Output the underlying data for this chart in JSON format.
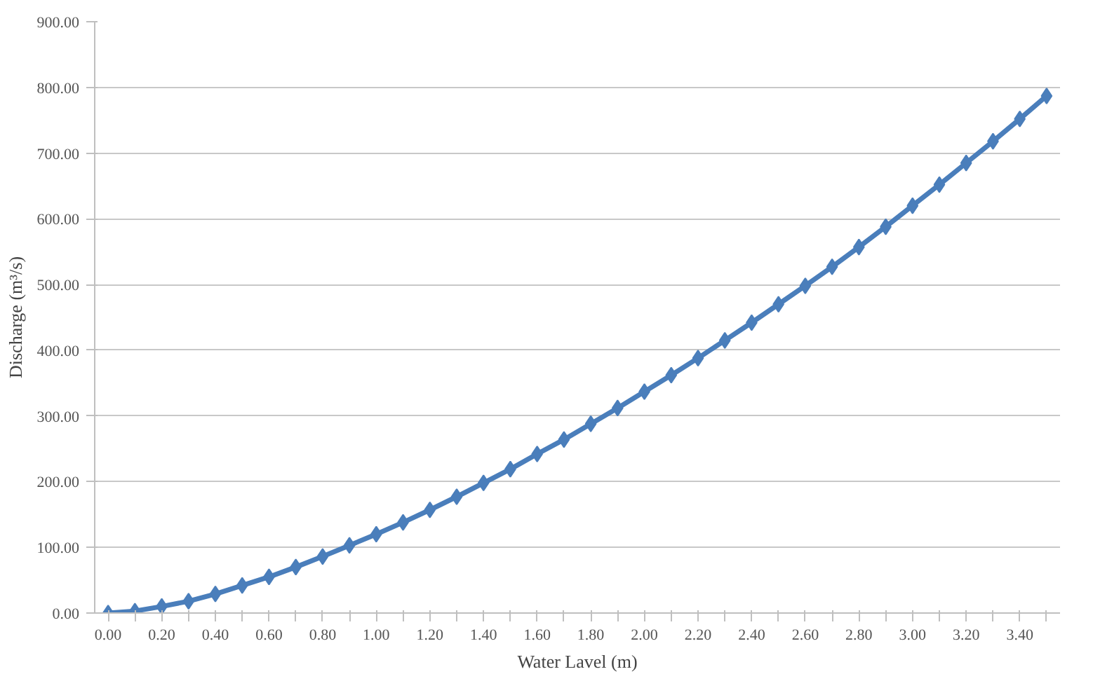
{
  "chart_data": {
    "type": "line",
    "xlabel": "Water Lavel (m)",
    "ylabel": "Discharge (m³/s)",
    "categories": [
      "0.00",
      null,
      "0.20",
      null,
      "0.40",
      null,
      "0.60",
      null,
      "0.80",
      null,
      "1.00",
      null,
      "1.20",
      null,
      "1.40",
      null,
      "1.60",
      null,
      "1.80",
      null,
      "2.00",
      null,
      "2.20",
      null,
      "2.40",
      null,
      "2.60",
      null,
      "2.80",
      null,
      "3.00",
      null,
      "3.20",
      null,
      "3.40",
      null
    ],
    "series": [
      {
        "color": "#4a7ebb",
        "values": [
          0,
          3,
          10,
          18,
          29,
          42,
          55,
          70,
          86,
          103,
          120,
          138,
          157,
          177,
          198,
          219,
          242,
          264,
          288,
          312,
          337,
          362,
          388,
          415,
          442,
          470,
          498,
          527,
          557,
          588,
          620,
          652,
          685,
          718,
          752,
          787
        ]
      }
    ],
    "ylim": [
      0,
      900
    ],
    "yticks": [
      {
        "value": 0,
        "label": "0.00"
      },
      {
        "value": 100,
        "label": "100.00"
      },
      {
        "value": 200,
        "label": "200.00"
      },
      {
        "value": 300,
        "label": "300.00"
      },
      {
        "value": 400,
        "label": "400.00"
      },
      {
        "value": 500,
        "label": "500.00"
      },
      {
        "value": 600,
        "label": "600.00"
      },
      {
        "value": 700,
        "label": "700.00"
      },
      {
        "value": 800,
        "label": "800.00"
      },
      {
        "value": 900,
        "label": "900.00"
      }
    ],
    "grid": "y",
    "marker": "diamond",
    "line_style": "solid"
  }
}
